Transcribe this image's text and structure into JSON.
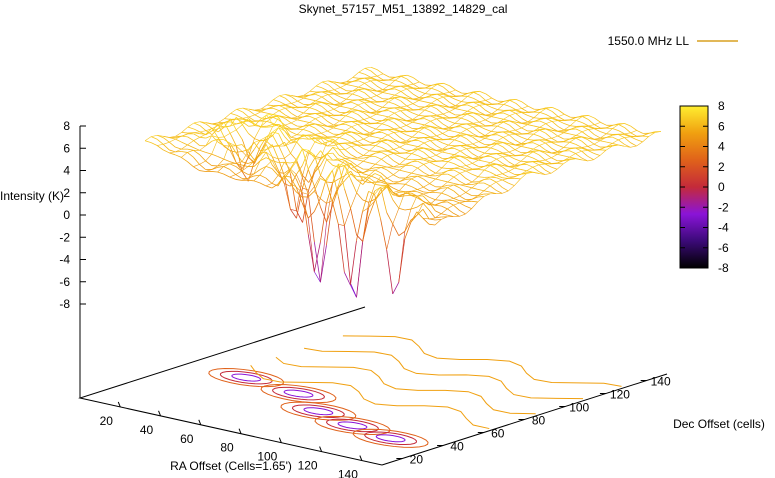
{
  "chart_data": {
    "type": "surface-3d",
    "title": "Skynet_57157_M51_13892_14829_cal",
    "xlabel": "RA Offset (Cells=1.65')",
    "ylabel": "Dec Offset (cells)",
    "zlabel": "Intensity (K)",
    "xlim": [
      0,
      150
    ],
    "ylim": [
      10,
      150
    ],
    "zlim": [
      -8,
      8
    ],
    "x_ticks": [
      20,
      40,
      60,
      80,
      100,
      120,
      140
    ],
    "y_ticks": [
      20,
      40,
      60,
      80,
      100,
      120,
      140
    ],
    "z_ticks": [
      -8,
      -6,
      -4,
      -2,
      0,
      2,
      4,
      6,
      8
    ],
    "colorbar_ticks": [
      -8,
      -6,
      -4,
      -2,
      0,
      2,
      4,
      6,
      8
    ],
    "colorbar_range": [
      -8,
      8
    ],
    "palette": [
      "#000000",
      "#3b0a78",
      "#8a14d8",
      "#c42a3a",
      "#e0621a",
      "#f0a010",
      "#ffee30"
    ],
    "series": [
      {
        "name": "1550.0 MHz LL",
        "color": "#7a1ad0"
      }
    ],
    "legend_position": "top-right",
    "dips": [
      {
        "x": 30,
        "y": 62,
        "depth": -2
      },
      {
        "x": 60,
        "y": 58,
        "depth": -5
      },
      {
        "x": 82,
        "y": 46,
        "depth": -8
      },
      {
        "x": 105,
        "y": 40,
        "depth": -8
      },
      {
        "x": 128,
        "y": 36,
        "depth": -8
      }
    ],
    "plateau_level": 6.5,
    "grid": false
  }
}
